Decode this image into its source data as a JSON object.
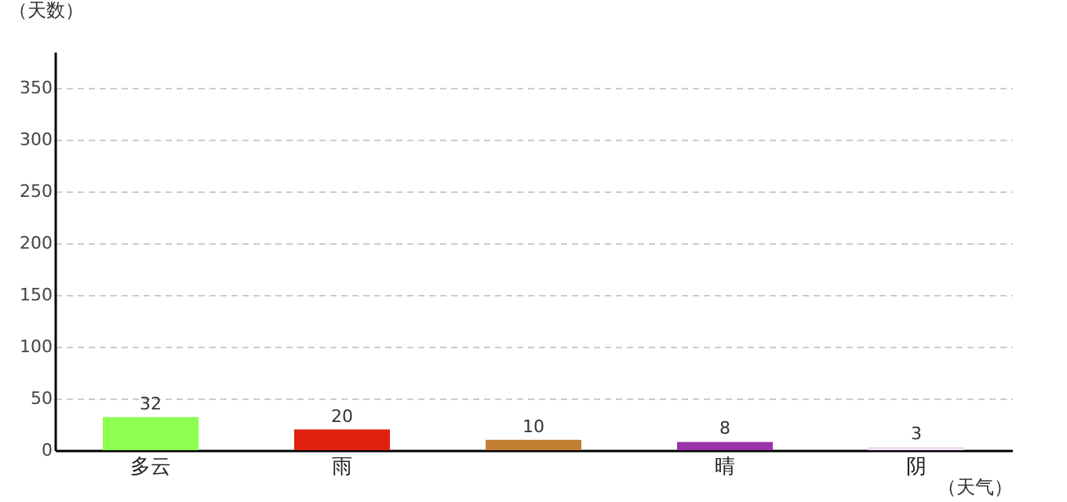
{
  "chart_data": {
    "type": "bar",
    "xlabel": "（天气）",
    "ylabel": "（天数）",
    "categories": [
      "多云",
      "雨",
      null,
      "晴",
      "阴"
    ],
    "values": [
      32,
      20,
      10,
      8,
      3
    ],
    "colors": [
      "#8cff50",
      "#e0210f",
      "#c07f32",
      "#9933aa",
      "#f0dcf0"
    ],
    "ylim": [
      0,
      385
    ],
    "yticks": [
      0,
      50,
      100,
      150,
      200,
      250,
      300,
      350
    ],
    "grid": "y",
    "data_labels": true
  }
}
